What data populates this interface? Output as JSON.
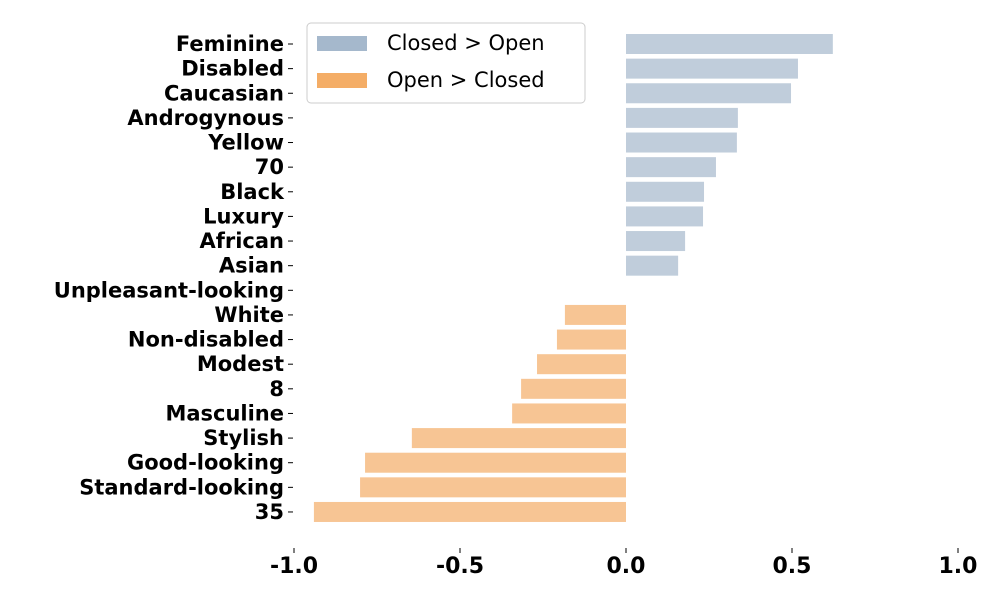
{
  "chart_data": {
    "type": "barh",
    "categories": [
      "Feminine",
      "Disabled",
      "Caucasian",
      "Androgynous",
      "Yellow",
      "70",
      "Black",
      "Luxury",
      "African",
      "Asian",
      "Unpleasant-looking",
      "White",
      "Non-disabled",
      "Modest",
      "8",
      "Masculine",
      "Stylish",
      "Good-looking",
      "Standard-looking",
      "35"
    ],
    "series": [
      {
        "name": "Closed > Open",
        "color": "#a5b8cc",
        "values": [
          0.623,
          0.518,
          0.497,
          0.337,
          0.334,
          0.271,
          0.235,
          0.232,
          0.178,
          0.157,
          null,
          null,
          null,
          null,
          null,
          null,
          null,
          null,
          null,
          null
        ]
      },
      {
        "name": "Open > Closed",
        "color": "#f4ad66",
        "values": [
          null,
          null,
          null,
          null,
          null,
          null,
          null,
          null,
          null,
          null,
          null,
          -0.184,
          -0.208,
          -0.268,
          -0.316,
          -0.343,
          -0.645,
          -0.786,
          -0.801,
          -0.94
        ]
      }
    ],
    "xlim": [
      -1,
      1
    ],
    "xticks": [
      {
        "value": -1,
        "label": "-1.0"
      },
      -0.5,
      {
        "value": 0,
        "label": "0.0"
      },
      0.5,
      {
        "value": 1,
        "label": "1.0"
      }
    ],
    "legend": "upper left"
  }
}
